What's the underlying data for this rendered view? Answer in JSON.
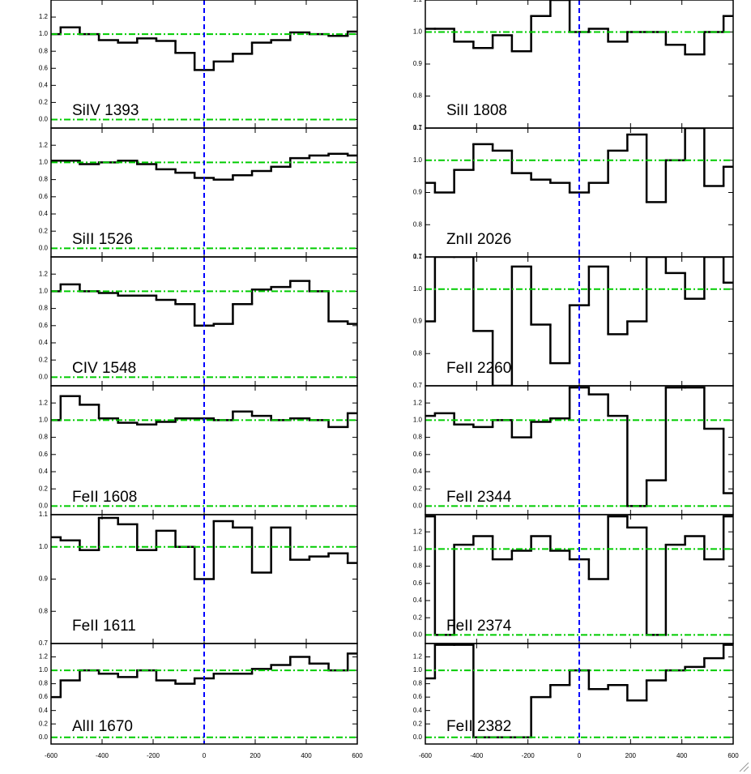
{
  "chart_data": [
    {
      "type": "line",
      "step": "mid",
      "label": "SiIV 1393",
      "color": "#000000",
      "x": [
        -600,
        -525,
        -450,
        -375,
        -300,
        -225,
        -150,
        -75,
        0,
        75,
        150,
        225,
        300,
        375,
        450,
        525,
        600
      ],
      "values": [
        1.0,
        1.08,
        1.0,
        0.93,
        0.9,
        0.95,
        0.92,
        0.78,
        0.58,
        0.68,
        0.77,
        0.9,
        0.93,
        1.02,
        1.0,
        0.98,
        1.03
      ],
      "xlim": [
        -600,
        600
      ],
      "xticks": [
        -600,
        -400,
        -200,
        0,
        200,
        400,
        600
      ],
      "ylim": [
        -0.1,
        1.4
      ],
      "yticks": [
        {
          "value": 0,
          "label": "0.0"
        },
        0.2,
        0.4,
        0.6,
        0.8,
        {
          "value": 1,
          "label": "1.0"
        },
        1.2
      ],
      "hlines": [
        0,
        1
      ],
      "hline_color": "#00cc00",
      "vline": 0,
      "vline_color": "#0000ff"
    },
    {
      "type": "line",
      "step": "mid",
      "label": "SiII 1526",
      "color": "#000000",
      "x": [
        -600,
        -525,
        -450,
        -375,
        -300,
        -225,
        -150,
        -75,
        0,
        75,
        150,
        225,
        300,
        375,
        450,
        525,
        600
      ],
      "values": [
        1.02,
        1.02,
        0.98,
        1.0,
        1.02,
        0.98,
        0.92,
        0.88,
        0.82,
        0.8,
        0.85,
        0.9,
        0.95,
        1.05,
        1.08,
        1.1,
        1.08
      ],
      "xlim": [
        -600,
        600
      ],
      "xticks": [
        -600,
        -400,
        -200,
        0,
        200,
        400,
        600
      ],
      "ylim": [
        -0.1,
        1.4
      ],
      "yticks": [
        {
          "value": 0,
          "label": "0.0"
        },
        0.2,
        0.4,
        0.6,
        0.8,
        {
          "value": 1,
          "label": "1.0"
        },
        1.2
      ],
      "hlines": [
        0,
        1
      ],
      "hline_color": "#00cc00",
      "vline": 0,
      "vline_color": "#0000ff"
    },
    {
      "type": "line",
      "step": "mid",
      "label": "CIV 1548",
      "color": "#000000",
      "x": [
        -600,
        -525,
        -450,
        -375,
        -300,
        -225,
        -150,
        -75,
        0,
        75,
        150,
        225,
        300,
        375,
        450,
        525,
        600
      ],
      "values": [
        1.0,
        1.08,
        1.0,
        0.98,
        0.95,
        0.95,
        0.9,
        0.85,
        0.6,
        0.62,
        0.85,
        1.02,
        1.05,
        1.12,
        1.0,
        0.65,
        0.62
      ],
      "xlim": [
        -600,
        600
      ],
      "xticks": [
        -600,
        -400,
        -200,
        0,
        200,
        400,
        600
      ],
      "ylim": [
        -0.1,
        1.4
      ],
      "yticks": [
        {
          "value": 0,
          "label": "0.0"
        },
        0.2,
        0.4,
        0.6,
        0.8,
        {
          "value": 1,
          "label": "1.0"
        },
        1.2
      ],
      "hlines": [
        0,
        1
      ],
      "hline_color": "#00cc00",
      "vline": 0,
      "vline_color": "#0000ff"
    },
    {
      "type": "line",
      "step": "mid",
      "label": "FeII 1608",
      "color": "#000000",
      "x": [
        -600,
        -525,
        -450,
        -375,
        -300,
        -225,
        -150,
        -75,
        0,
        75,
        150,
        225,
        300,
        375,
        450,
        525,
        600
      ],
      "values": [
        1.0,
        1.28,
        1.18,
        1.02,
        0.97,
        0.95,
        0.98,
        1.02,
        1.02,
        1.0,
        1.1,
        1.05,
        1.0,
        1.02,
        1.0,
        0.92,
        1.08
      ],
      "xlim": [
        -600,
        600
      ],
      "xticks": [
        -600,
        -400,
        -200,
        0,
        200,
        400,
        600
      ],
      "ylim": [
        -0.1,
        1.4
      ],
      "yticks": [
        {
          "value": 0,
          "label": "0.0"
        },
        0.2,
        0.4,
        0.6,
        0.8,
        {
          "value": 1,
          "label": "1.0"
        },
        1.2
      ],
      "hlines": [
        0,
        1
      ],
      "hline_color": "#00cc00",
      "vline": 0,
      "vline_color": "#0000ff"
    },
    {
      "type": "line",
      "step": "mid",
      "label": "FeII 1611",
      "color": "#000000",
      "x": [
        -600,
        -525,
        -450,
        -375,
        -300,
        -225,
        -150,
        -75,
        0,
        75,
        150,
        225,
        300,
        375,
        450,
        525,
        600
      ],
      "values": [
        1.03,
        1.02,
        0.99,
        1.09,
        1.07,
        0.99,
        1.05,
        1.0,
        0.9,
        1.08,
        1.06,
        0.92,
        1.06,
        0.96,
        0.97,
        0.98,
        0.95
      ],
      "xlim": [
        -600,
        600
      ],
      "xticks": [
        -600,
        -400,
        -200,
        0,
        200,
        400,
        600
      ],
      "ylim": [
        0.7,
        1.1
      ],
      "yticks": [
        0.7,
        0.8,
        0.9,
        {
          "value": 1,
          "label": "1.0"
        },
        1.1
      ],
      "hlines": [
        1
      ],
      "hline_color": "#00cc00",
      "vline": 0,
      "vline_color": "#0000ff"
    },
    {
      "type": "line",
      "step": "mid",
      "label": "AlII 1670",
      "color": "#000000",
      "x": [
        -600,
        -525,
        -450,
        -375,
        -300,
        -225,
        -150,
        -75,
        0,
        75,
        150,
        225,
        300,
        375,
        450,
        525,
        600
      ],
      "values": [
        0.6,
        0.85,
        1.0,
        0.95,
        0.9,
        1.0,
        0.85,
        0.8,
        0.88,
        0.95,
        0.95,
        1.02,
        1.08,
        1.2,
        1.1,
        1.0,
        1.25
      ],
      "xlim": [
        -600,
        600
      ],
      "xticks": [
        -600,
        -400,
        -200,
        0,
        200,
        400,
        600
      ],
      "ylim": [
        -0.1,
        1.4
      ],
      "yticks": [
        {
          "value": 0,
          "label": "0.0"
        },
        0.2,
        0.4,
        0.6,
        0.8,
        {
          "value": 1,
          "label": "1.0"
        },
        1.2
      ],
      "hlines": [
        0,
        1
      ],
      "hline_color": "#00cc00",
      "vline": 0,
      "vline_color": "#0000ff"
    },
    {
      "type": "line",
      "step": "mid",
      "label": "SiII 1808",
      "color": "#000000",
      "x": [
        -600,
        -525,
        -450,
        -375,
        -300,
        -225,
        -150,
        -75,
        0,
        75,
        150,
        225,
        300,
        375,
        450,
        525,
        600
      ],
      "values": [
        1.01,
        1.01,
        0.97,
        0.95,
        0.99,
        0.94,
        1.05,
        1.1,
        1.0,
        1.01,
        0.97,
        1.0,
        1.0,
        0.96,
        0.93,
        1.0,
        1.05
      ],
      "xlim": [
        -600,
        600
      ],
      "xticks": [
        -600,
        -400,
        -200,
        0,
        200,
        400,
        600
      ],
      "ylim": [
        0.7,
        1.1
      ],
      "yticks": [
        0.7,
        0.8,
        0.9,
        {
          "value": 1,
          "label": "1.0"
        },
        1.1
      ],
      "hlines": [
        1
      ],
      "hline_color": "#00cc00",
      "vline": 0,
      "vline_color": "#0000ff"
    },
    {
      "type": "line",
      "step": "mid",
      "label": "ZnII 2026",
      "color": "#000000",
      "x": [
        -600,
        -525,
        -450,
        -375,
        -300,
        -225,
        -150,
        -75,
        0,
        75,
        150,
        225,
        300,
        375,
        450,
        525,
        600
      ],
      "values": [
        0.93,
        0.9,
        0.97,
        1.05,
        1.03,
        0.96,
        0.94,
        0.93,
        0.9,
        0.93,
        1.03,
        1.08,
        0.87,
        1.0,
        1.1,
        0.92,
        0.98
      ],
      "xlim": [
        -600,
        600
      ],
      "xticks": [
        -600,
        -400,
        -200,
        0,
        200,
        400,
        600
      ],
      "ylim": [
        0.7,
        1.1
      ],
      "yticks": [
        0.7,
        0.8,
        0.9,
        {
          "value": 1,
          "label": "1.0"
        },
        1.1
      ],
      "hlines": [
        1
      ],
      "hline_color": "#00cc00",
      "vline": 0,
      "vline_color": "#0000ff"
    },
    {
      "type": "line",
      "step": "mid",
      "label": "FeII 2260",
      "color": "#000000",
      "x": [
        -600,
        -525,
        -450,
        -375,
        -300,
        -225,
        -150,
        -75,
        0,
        75,
        150,
        225,
        300,
        375,
        450,
        525,
        600
      ],
      "values": [
        0.9,
        1.1,
        1.1,
        0.87,
        0.7,
        1.07,
        0.89,
        0.77,
        0.95,
        1.07,
        0.86,
        0.9,
        1.1,
        1.05,
        0.97,
        1.1,
        1.02
      ],
      "xlim": [
        -600,
        600
      ],
      "xticks": [
        -600,
        -400,
        -200,
        0,
        200,
        400,
        600
      ],
      "ylim": [
        0.7,
        1.1
      ],
      "yticks": [
        0.7,
        0.8,
        0.9,
        {
          "value": 1,
          "label": "1.0"
        },
        1.1
      ],
      "hlines": [
        1
      ],
      "hline_color": "#00cc00",
      "vline": 0,
      "vline_color": "#0000ff"
    },
    {
      "type": "line",
      "step": "mid",
      "label": "FeII 2344",
      "color": "#000000",
      "x": [
        -600,
        -525,
        -450,
        -375,
        -300,
        -225,
        -150,
        -75,
        0,
        75,
        150,
        225,
        300,
        375,
        450,
        525,
        600
      ],
      "values": [
        1.05,
        1.08,
        0.95,
        0.92,
        1.0,
        0.8,
        0.98,
        1.02,
        1.38,
        1.3,
        1.05,
        0.0,
        0.3,
        1.38,
        1.38,
        0.9,
        0.15
      ],
      "xlim": [
        -600,
        600
      ],
      "xticks": [
        -600,
        -400,
        -200,
        0,
        200,
        400,
        600
      ],
      "ylim": [
        -0.1,
        1.4
      ],
      "yticks": [
        {
          "value": 0,
          "label": "0.0"
        },
        0.2,
        0.4,
        0.6,
        0.8,
        {
          "value": 1,
          "label": "1.0"
        },
        1.2
      ],
      "hlines": [
        0,
        1
      ],
      "hline_color": "#00cc00",
      "vline": 0,
      "vline_color": "#0000ff"
    },
    {
      "type": "line",
      "step": "mid",
      "label": "FeII 2374",
      "color": "#000000",
      "x": [
        -600,
        -525,
        -450,
        -375,
        -300,
        -225,
        -150,
        -75,
        0,
        75,
        150,
        225,
        300,
        375,
        450,
        525,
        600
      ],
      "values": [
        1.38,
        0.0,
        1.05,
        1.15,
        0.88,
        0.98,
        1.15,
        0.98,
        0.88,
        0.65,
        1.38,
        1.25,
        0.0,
        1.05,
        1.15,
        0.88,
        1.38
      ],
      "xlim": [
        -600,
        600
      ],
      "xticks": [
        -600,
        -400,
        -200,
        0,
        200,
        400,
        600
      ],
      "ylim": [
        -0.1,
        1.4
      ],
      "yticks": [
        {
          "value": 0,
          "label": "0.0"
        },
        0.2,
        0.4,
        0.6,
        0.8,
        {
          "value": 1,
          "label": "1.0"
        },
        1.2
      ],
      "hlines": [
        0,
        1
      ],
      "hline_color": "#00cc00",
      "vline": 0,
      "vline_color": "#0000ff"
    },
    {
      "type": "line",
      "step": "mid",
      "label": "FeII 2382",
      "color": "#000000",
      "x": [
        -600,
        -525,
        -450,
        -375,
        -300,
        -225,
        -150,
        -75,
        0,
        75,
        150,
        225,
        300,
        375,
        450,
        525,
        600
      ],
      "values": [
        0.88,
        1.38,
        1.38,
        0.0,
        0.0,
        0.0,
        0.6,
        0.78,
        1.0,
        0.72,
        0.78,
        0.55,
        0.85,
        1.0,
        1.05,
        1.18,
        1.38
      ],
      "xlim": [
        -600,
        600
      ],
      "xticks": [
        -600,
        -400,
        -200,
        0,
        200,
        400,
        600
      ],
      "ylim": [
        -0.1,
        1.4
      ],
      "yticks": [
        {
          "value": 0,
          "label": "0.0"
        },
        0.2,
        0.4,
        0.6,
        0.8,
        {
          "value": 1,
          "label": "1.0"
        },
        1.2
      ],
      "hlines": [
        0,
        1
      ],
      "hline_color": "#00cc00",
      "vline": 0,
      "vline_color": "#0000ff"
    }
  ]
}
